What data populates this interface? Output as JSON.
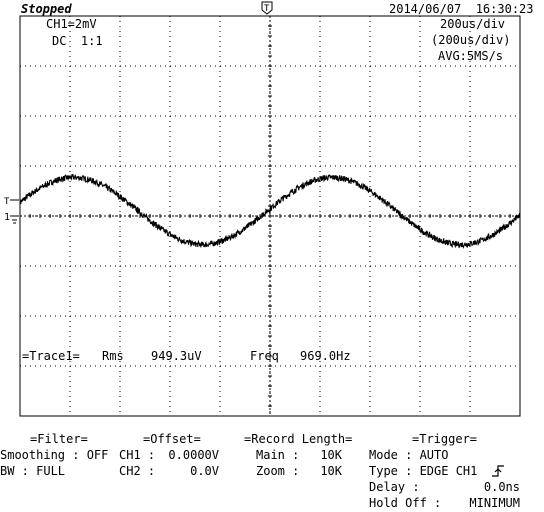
{
  "status": "Stopped",
  "datetime": "2014/06/07  16:30:23",
  "channel": {
    "scale": "CH1=2mV",
    "coupling": "DC  1:1"
  },
  "timebase": {
    "div": "200us/div",
    "div_paren": "(200us/div)",
    "acq": "AVG:5MS/s"
  },
  "markers": {
    "trigger_position": "T",
    "trigger_level": "T",
    "channel_ground": "1"
  },
  "measurement": {
    "label": "=Trace1=",
    "rms_label": "Rms",
    "rms_value": "949.3uV",
    "freq_label": "Freq",
    "freq_value": "969.0Hz"
  },
  "waveform": {
    "frequency_hz": 969.0,
    "rms_uV": 949.3,
    "volts_per_div_mV": 2,
    "time_per_div_us": 200,
    "divisions_x": 10,
    "divisions_y": 8,
    "phase_start_deg": 15,
    "offset_div": 0.1,
    "noise_div": 0.06
  },
  "panels": {
    "filter": {
      "title": "=Filter=",
      "smoothing_label": "Smoothing : ",
      "smoothing_value": "OFF",
      "bw_label": "BW : ",
      "bw_value": "FULL"
    },
    "offset": {
      "title": "=Offset=",
      "ch1_label": "CH1 :",
      "ch1_value": "0.0000V",
      "ch2_label": "CH2 :",
      "ch2_value": "0.0V"
    },
    "record": {
      "title": "=Record Length=",
      "main_label": "Main :",
      "main_value": "10K",
      "zoom_label": "Zoom :",
      "zoom_value": "10K"
    },
    "trigger": {
      "title": "=Trigger=",
      "mode_label": "Mode : ",
      "mode_value": "AUTO",
      "type_label": "Type : ",
      "type_value": "EDGE CH1",
      "delay_label": "Delay :",
      "delay_value": "0.0ns",
      "holdoff_label": "Hold Off :",
      "holdoff_value": "MINIMUM"
    }
  }
}
